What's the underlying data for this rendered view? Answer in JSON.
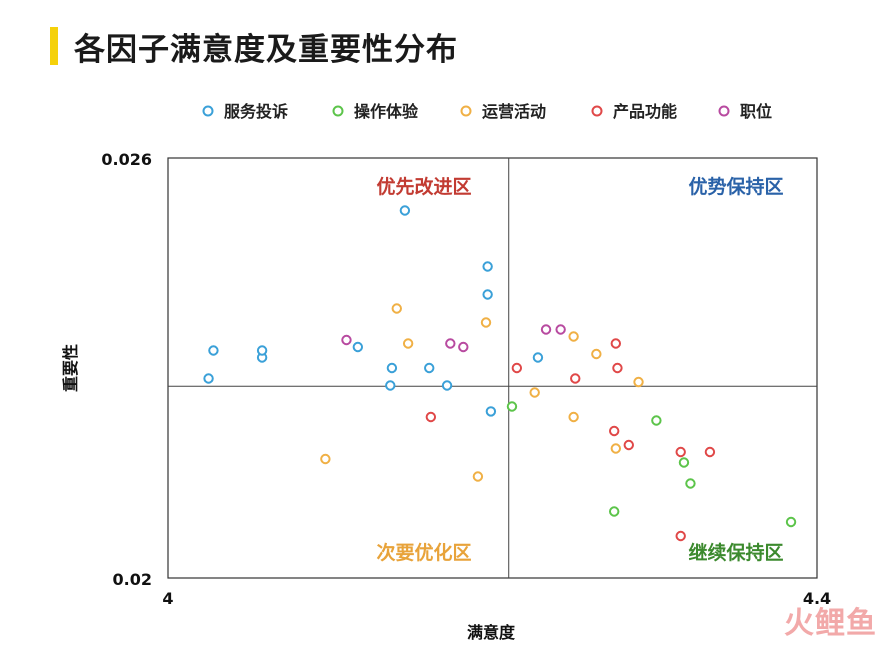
{
  "title": "各因子满意度及重要性分布",
  "watermark": "火鲤鱼",
  "chart_data": {
    "type": "scatter",
    "xlabel": "满意度",
    "ylabel": "重要性",
    "xlim": [
      4,
      4.4
    ],
    "ylim": [
      0.02,
      0.026
    ],
    "x_tick_labels": [
      "4",
      "4.4"
    ],
    "y_tick_labels": [
      "0.02",
      "0.026"
    ],
    "reference_lines": {
      "x": 4.21,
      "y": 0.02274
    },
    "legend_position": "top",
    "quadrants": {
      "top_left": {
        "label": "优先改进区",
        "color": "#c23b32"
      },
      "top_right": {
        "label": "优势保持区",
        "color": "#2a62a8"
      },
      "bottom_left": {
        "label": "次要优化区",
        "color": "#e8a33a"
      },
      "bottom_right": {
        "label": "继续保持区",
        "color": "#3c8a2e"
      }
    },
    "series": [
      {
        "name": "服务投诉",
        "color": "#3aa0d8",
        "points": [
          [
            4.146,
            0.02525
          ],
          [
            4.058,
            0.02315
          ],
          [
            4.058,
            0.02325
          ],
          [
            4.025,
            0.02285
          ],
          [
            4.028,
            0.02325
          ],
          [
            4.197,
            0.02445
          ],
          [
            4.197,
            0.02405
          ],
          [
            4.117,
            0.0233
          ],
          [
            4.138,
            0.023
          ],
          [
            4.161,
            0.023
          ],
          [
            4.137,
            0.02275
          ],
          [
            4.172,
            0.02275
          ],
          [
            4.199,
            0.02238
          ],
          [
            4.228,
            0.02315
          ]
        ]
      },
      {
        "name": "操作体验",
        "color": "#5cc44a",
        "points": [
          [
            4.212,
            0.02245
          ],
          [
            4.301,
            0.02225
          ],
          [
            4.318,
            0.02165
          ],
          [
            4.275,
            0.02095
          ],
          [
            4.322,
            0.02135
          ],
          [
            4.384,
            0.0208
          ]
        ]
      },
      {
        "name": "运营活动",
        "color": "#f0b045",
        "points": [
          [
            4.141,
            0.02385
          ],
          [
            4.196,
            0.02365
          ],
          [
            4.148,
            0.02335
          ],
          [
            4.25,
            0.02345
          ],
          [
            4.264,
            0.0232
          ],
          [
            4.29,
            0.0228
          ],
          [
            4.226,
            0.02265
          ],
          [
            4.25,
            0.0223
          ],
          [
            4.191,
            0.02145
          ],
          [
            4.097,
            0.0217
          ],
          [
            4.276,
            0.02185
          ]
        ]
      },
      {
        "name": "产品功能",
        "color": "#e04848",
        "points": [
          [
            4.276,
            0.02335
          ],
          [
            4.277,
            0.023
          ],
          [
            4.215,
            0.023
          ],
          [
            4.251,
            0.02285
          ],
          [
            4.162,
            0.0223
          ],
          [
            4.275,
            0.0221
          ],
          [
            4.284,
            0.0219
          ],
          [
            4.316,
            0.0218
          ],
          [
            4.334,
            0.0218
          ],
          [
            4.316,
            0.0206
          ]
        ]
      },
      {
        "name": "职位",
        "color": "#b84aa0",
        "points": [
          [
            4.11,
            0.0234
          ],
          [
            4.174,
            0.02335
          ],
          [
            4.182,
            0.0233
          ],
          [
            4.233,
            0.02355
          ],
          [
            4.242,
            0.02355
          ]
        ]
      }
    ]
  }
}
